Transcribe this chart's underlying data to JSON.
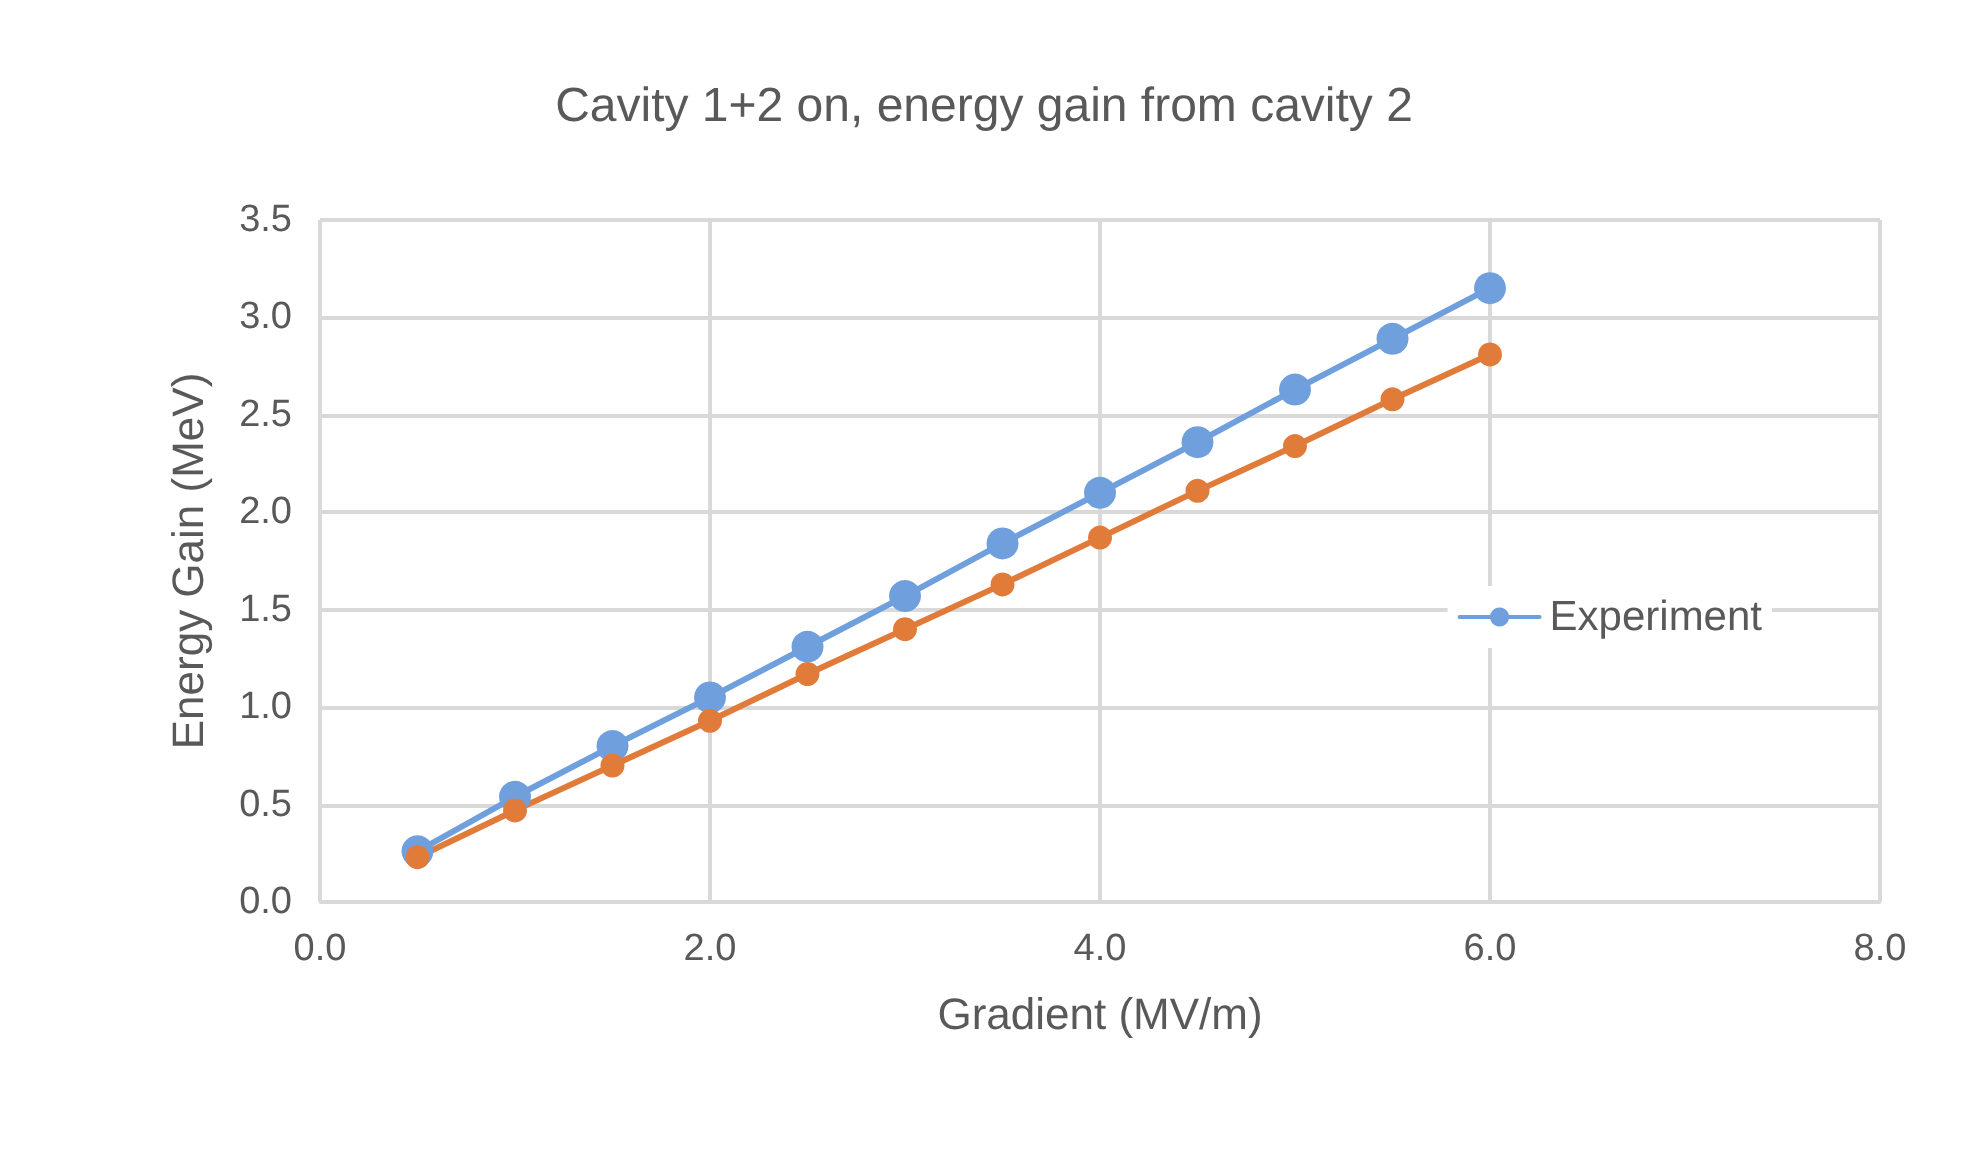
{
  "chart_data": {
    "type": "line",
    "title": "Cavity 1+2 on, energy gain from cavity 2",
    "xlabel": "Gradient (MV/m)",
    "ylabel": "Energy Gain (MeV)",
    "x": [
      0.5,
      1,
      1.5,
      2,
      2.5,
      3,
      3.5,
      4,
      4.5,
      5,
      5.5,
      6
    ],
    "series": [
      {
        "name": "Experiment",
        "color": "#6f9fdc",
        "values": [
          0.26,
          0.54,
          0.8,
          1.05,
          1.31,
          1.57,
          1.84,
          2.1,
          2.36,
          2.63,
          2.89,
          3.15
        ]
      },
      {
        "color": "#e07b39",
        "values": [
          0.23,
          0.47,
          0.7,
          0.93,
          1.17,
          1.4,
          1.63,
          1.87,
          2.11,
          2.34,
          2.58,
          2.81
        ]
      }
    ],
    "xlim": [
      0,
      8
    ],
    "xticks": [
      {
        "value": 0,
        "label": "0.0"
      },
      {
        "value": 2,
        "label": "2.0"
      },
      {
        "value": 4,
        "label": "4.0"
      },
      {
        "value": 6,
        "label": "6.0"
      },
      {
        "value": 8,
        "label": "8.0"
      }
    ],
    "ylim": [
      0,
      3.5
    ],
    "yticks": [
      {
        "value": 0,
        "label": "0.0"
      },
      {
        "value": 0.5,
        "label": "0.5"
      },
      {
        "value": 1,
        "label": "1.0"
      },
      {
        "value": 1.5,
        "label": "1.5"
      },
      {
        "value": 2,
        "label": "2.0"
      },
      {
        "value": 2.5,
        "label": "2.5"
      },
      {
        "value": 3,
        "label": "3.0"
      },
      {
        "value": 3.5,
        "label": "3.5"
      }
    ],
    "grid": true,
    "legend": "right",
    "marker": "circle",
    "line_style": "solid"
  }
}
